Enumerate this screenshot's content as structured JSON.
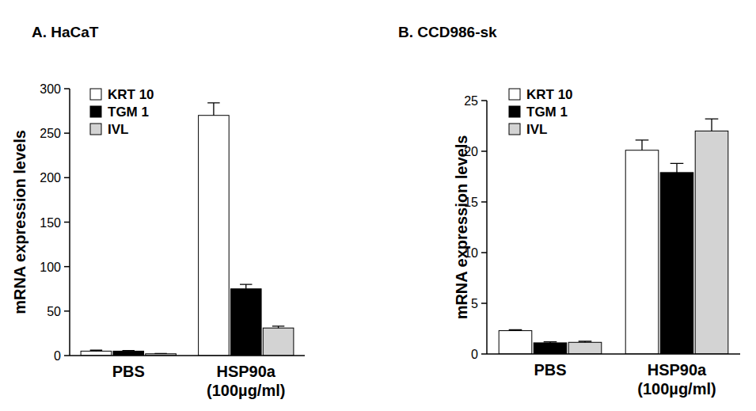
{
  "chart_data": [
    {
      "type": "bar",
      "title": "A. HaCaT",
      "y_label": "mRNA expression levels",
      "categories": [
        "PBS",
        "HSP90a\n(100µg/ml)"
      ],
      "series": [
        {
          "name": "KRT 10",
          "color": "#ffffff",
          "values": [
            5,
            270
          ],
          "errors": [
            1,
            14
          ]
        },
        {
          "name": "TGM 1",
          "color": "#000000",
          "values": [
            5,
            75
          ],
          "errors": [
            0.6,
            5
          ]
        },
        {
          "name": "IVL",
          "color": "#d3d3d3",
          "values": [
            2,
            31
          ],
          "errors": [
            0.4,
            2
          ]
        }
      ],
      "ylim": [
        0,
        300
      ],
      "yticks": [
        0,
        50,
        100,
        150,
        200,
        250,
        300
      ],
      "legend": "upper left",
      "grid": false
    },
    {
      "type": "bar",
      "title": "B. CCD986-sk",
      "y_label": "mRNA expression levels",
      "categories": [
        "PBS",
        "HSP90a\n(100µg/ml)"
      ],
      "series": [
        {
          "name": "KRT 10",
          "color": "#ffffff",
          "values": [
            2.3,
            20.1
          ],
          "errors": [
            0.1,
            1.0
          ]
        },
        {
          "name": "TGM 1",
          "color": "#000000",
          "values": [
            1.1,
            17.9
          ],
          "errors": [
            0.1,
            0.9
          ]
        },
        {
          "name": "IVL",
          "color": "#d3d3d3",
          "values": [
            1.15,
            22.0
          ],
          "errors": [
            0.1,
            1.2
          ]
        }
      ],
      "ylim": [
        0,
        25
      ],
      "yticks": [
        0,
        5,
        10,
        15,
        20,
        25
      ],
      "legend": "upper left",
      "grid": false
    }
  ]
}
